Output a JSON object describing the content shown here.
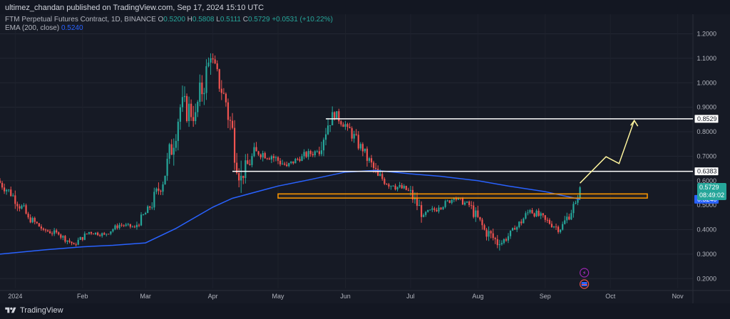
{
  "header": {
    "publisher": "ultimez_chandan published on TradingView.com, Sep 17, 2024 15:10 UTC"
  },
  "legend": {
    "symbol": "FTM Perpetual Futures Contract, 1D, BINANCE",
    "o_label": "O",
    "o_value": "0.5200",
    "h_label": "H",
    "h_value": "0.5808",
    "l_label": "L",
    "l_value": "0.5111",
    "c_label": "C",
    "c_value": "0.5729",
    "change": "+0.0531 (+10.22%)",
    "ema_label": "EMA (200, close)",
    "ema_value": "0.5240"
  },
  "footer": {
    "brand": "TradingView"
  },
  "colors": {
    "background": "#161a25",
    "up": "#26a69a",
    "down": "#ef5350",
    "ema": "#2962ff",
    "resistance": "#ffffff",
    "zone": "#ff9800",
    "projection": "#fff59d"
  },
  "chart_data": {
    "type": "candlestick",
    "symbol": "FTM Perpetual Futures Contract",
    "timeframe": "1D",
    "exchange": "BINANCE",
    "x_ticks": [
      "2024",
      "Feb",
      "Mar",
      "Apr",
      "May",
      "Jun",
      "Jul",
      "Aug",
      "Sep",
      "Oct",
      "Nov"
    ],
    "y_ticks": [
      "1.2000",
      "1.1000",
      "1.0000",
      "0.9000",
      "0.8000",
      "0.7000",
      "0.6000",
      "0.5000",
      "0.4000",
      "0.3000",
      "0.2000"
    ],
    "ylim": [
      0.16,
      1.28
    ],
    "xlim": [
      "2023-12-25",
      "2024-11-08"
    ],
    "last_price": {
      "value": 0.5729,
      "label": "0.5729",
      "countdown": "08:49:02"
    },
    "ema": {
      "name": "EMA (200, close)",
      "value": 0.524,
      "label": "0.5240",
      "points": [
        [
          "2023-12-25",
          0.3
        ],
        [
          "2024-01-15",
          0.318
        ],
        [
          "2024-02-01",
          0.33
        ],
        [
          "2024-02-15",
          0.336
        ],
        [
          "2024-03-01",
          0.346
        ],
        [
          "2024-03-15",
          0.405
        ],
        [
          "2024-04-01",
          0.492
        ],
        [
          "2024-04-10",
          0.528
        ],
        [
          "2024-05-01",
          0.578
        ],
        [
          "2024-05-15",
          0.603
        ],
        [
          "2024-06-01",
          0.635
        ],
        [
          "2024-06-15",
          0.642
        ],
        [
          "2024-07-01",
          0.628
        ],
        [
          "2024-07-15",
          0.618
        ],
        [
          "2024-08-01",
          0.6
        ],
        [
          "2024-08-15",
          0.578
        ],
        [
          "2024-09-01",
          0.555
        ],
        [
          "2024-09-17",
          0.524
        ]
      ]
    },
    "levels": [
      {
        "name": "resistance-high",
        "value": 0.8529,
        "label": "0.8529",
        "from": "2024-05-23",
        "to": "2024-11-08"
      },
      {
        "name": "resistance-mid",
        "value": 0.6383,
        "label": "0.6383",
        "from": "2024-04-10",
        "to": "2024-11-08"
      }
    ],
    "zone": {
      "from": "2024-05-01",
      "to": "2024-10-18",
      "low": 0.529,
      "high": 0.546
    },
    "projection": [
      [
        "2024-09-17",
        0.59
      ],
      [
        "2024-09-29",
        0.698
      ],
      [
        "2024-10-05",
        0.67
      ],
      [
        "2024-10-12",
        0.846
      ]
    ],
    "candles_weekly_summary": [
      [
        "2023-12-25",
        0.6,
        0.64,
        0.52,
        0.54
      ],
      [
        "2024-01-01",
        0.54,
        0.56,
        0.42,
        0.45
      ],
      [
        "2024-01-08",
        0.45,
        0.47,
        0.38,
        0.4
      ],
      [
        "2024-01-15",
        0.4,
        0.42,
        0.35,
        0.38
      ],
      [
        "2024-01-22",
        0.38,
        0.39,
        0.32,
        0.34
      ],
      [
        "2024-01-29",
        0.34,
        0.4,
        0.33,
        0.39
      ],
      [
        "2024-02-05",
        0.39,
        0.41,
        0.36,
        0.38
      ],
      [
        "2024-02-12",
        0.38,
        0.43,
        0.37,
        0.42
      ],
      [
        "2024-02-19",
        0.42,
        0.45,
        0.4,
        0.41
      ],
      [
        "2024-02-26",
        0.41,
        0.5,
        0.4,
        0.49
      ],
      [
        "2024-03-04",
        0.49,
        0.66,
        0.47,
        0.62
      ],
      [
        "2024-03-11",
        0.62,
        0.95,
        0.6,
        0.9
      ],
      [
        "2024-03-18",
        0.9,
        1.15,
        0.82,
        0.88
      ],
      [
        "2024-03-25",
        0.88,
        1.22,
        0.86,
        1.1
      ],
      [
        "2024-04-01",
        1.1,
        1.12,
        0.88,
        0.92
      ],
      [
        "2024-04-08",
        0.92,
        0.98,
        0.55,
        0.62
      ],
      [
        "2024-04-15",
        0.62,
        0.78,
        0.58,
        0.72
      ],
      [
        "2024-04-22",
        0.72,
        0.78,
        0.66,
        0.7
      ],
      [
        "2024-04-29",
        0.7,
        0.74,
        0.62,
        0.66
      ],
      [
        "2024-05-06",
        0.66,
        0.72,
        0.64,
        0.7
      ],
      [
        "2024-05-13",
        0.7,
        0.75,
        0.66,
        0.72
      ],
      [
        "2024-05-20",
        0.72,
        0.94,
        0.7,
        0.88
      ],
      [
        "2024-05-27",
        0.88,
        0.9,
        0.78,
        0.82
      ],
      [
        "2024-06-03",
        0.82,
        0.85,
        0.7,
        0.72
      ],
      [
        "2024-06-10",
        0.72,
        0.74,
        0.58,
        0.62
      ],
      [
        "2024-06-17",
        0.62,
        0.65,
        0.52,
        0.58
      ],
      [
        "2024-06-24",
        0.58,
        0.62,
        0.53,
        0.56
      ],
      [
        "2024-07-01",
        0.56,
        0.58,
        0.42,
        0.46
      ],
      [
        "2024-07-08",
        0.46,
        0.5,
        0.42,
        0.49
      ],
      [
        "2024-07-15",
        0.49,
        0.55,
        0.48,
        0.53
      ],
      [
        "2024-07-22",
        0.53,
        0.55,
        0.48,
        0.5
      ],
      [
        "2024-07-29",
        0.5,
        0.52,
        0.38,
        0.4
      ],
      [
        "2024-08-05",
        0.4,
        0.42,
        0.26,
        0.34
      ],
      [
        "2024-08-12",
        0.34,
        0.42,
        0.33,
        0.4
      ],
      [
        "2024-08-19",
        0.4,
        0.5,
        0.39,
        0.48
      ],
      [
        "2024-08-26",
        0.48,
        0.52,
        0.43,
        0.44
      ],
      [
        "2024-09-02",
        0.44,
        0.46,
        0.37,
        0.4
      ],
      [
        "2024-09-09",
        0.4,
        0.52,
        0.39,
        0.51
      ],
      [
        "2024-09-16",
        0.51,
        0.581,
        0.5,
        0.573
      ]
    ]
  }
}
